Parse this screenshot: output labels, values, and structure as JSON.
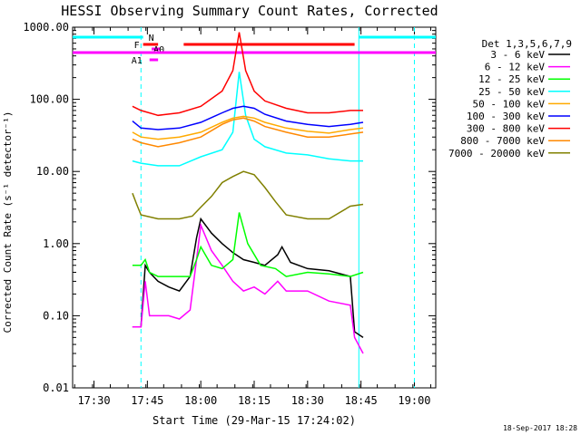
{
  "chart_data": {
    "type": "line",
    "title": "HESSI Observing Summary Count Rates, Corrected",
    "xlabel": "Start Time (29-Mar-15 17:24:02)",
    "ylabel": "Corrected Count Rate (s⁻¹ detector⁻¹)",
    "y_scale": "log",
    "ylim": [
      0.01,
      1000
    ],
    "y_ticks": [
      {
        "v": 1000,
        "label": "1000.00"
      },
      {
        "v": 100,
        "label": "100.00"
      },
      {
        "v": 10,
        "label": "10.00"
      },
      {
        "v": 1,
        "label": "1.00"
      },
      {
        "v": 0.1,
        "label": "0.10"
      },
      {
        "v": 0.01,
        "label": "0.01"
      }
    ],
    "xlim_minutes": [
      17.4,
      19.1
    ],
    "x_ticks": [
      {
        "v": 17.5,
        "label": "17:30"
      },
      {
        "v": 17.75,
        "label": "17:45"
      },
      {
        "v": 18.0,
        "label": "18:00"
      },
      {
        "v": 18.25,
        "label": "18:15"
      },
      {
        "v": 18.5,
        "label": "18:30"
      },
      {
        "v": 18.75,
        "label": "18:45"
      },
      {
        "v": 19.0,
        "label": "19:00"
      }
    ],
    "legend_title": "Det 1,3,5,6,7,9",
    "legend_placement": "right",
    "series": [
      {
        "name": "3 - 6 keV",
        "color": "#000000",
        "points": [
          [
            17.68,
            0.07
          ],
          [
            17.72,
            0.07
          ],
          [
            17.74,
            0.5
          ],
          [
            17.76,
            0.4
          ],
          [
            17.8,
            0.3
          ],
          [
            17.85,
            0.25
          ],
          [
            17.9,
            0.22
          ],
          [
            17.95,
            0.35
          ],
          [
            17.98,
            1.2
          ],
          [
            18.0,
            2.2
          ],
          [
            18.05,
            1.4
          ],
          [
            18.1,
            1.0
          ],
          [
            18.15,
            0.75
          ],
          [
            18.2,
            0.6
          ],
          [
            18.25,
            0.55
          ],
          [
            18.3,
            0.5
          ],
          [
            18.36,
            0.7
          ],
          [
            18.38,
            0.9
          ],
          [
            18.42,
            0.55
          ],
          [
            18.5,
            0.45
          ],
          [
            18.6,
            0.42
          ],
          [
            18.7,
            0.35
          ],
          [
            18.72,
            0.06
          ],
          [
            18.76,
            0.05
          ]
        ]
      },
      {
        "name": "6 - 12 keV",
        "color": "#ff00ff",
        "points": [
          [
            17.68,
            0.07
          ],
          [
            17.72,
            0.07
          ],
          [
            17.74,
            0.3
          ],
          [
            17.76,
            0.1
          ],
          [
            17.8,
            0.1
          ],
          [
            17.85,
            0.1
          ],
          [
            17.9,
            0.09
          ],
          [
            17.95,
            0.12
          ],
          [
            17.98,
            0.6
          ],
          [
            18.0,
            1.8
          ],
          [
            18.05,
            0.8
          ],
          [
            18.1,
            0.5
          ],
          [
            18.15,
            0.3
          ],
          [
            18.2,
            0.22
          ],
          [
            18.25,
            0.25
          ],
          [
            18.3,
            0.2
          ],
          [
            18.36,
            0.3
          ],
          [
            18.4,
            0.22
          ],
          [
            18.5,
            0.22
          ],
          [
            18.6,
            0.16
          ],
          [
            18.7,
            0.14
          ],
          [
            18.72,
            0.05
          ],
          [
            18.76,
            0.03
          ]
        ]
      },
      {
        "name": "12 - 25 keV",
        "color": "#00ff00",
        "points": [
          [
            17.68,
            0.5
          ],
          [
            17.72,
            0.5
          ],
          [
            17.74,
            0.6
          ],
          [
            17.76,
            0.4
          ],
          [
            17.8,
            0.35
          ],
          [
            17.9,
            0.35
          ],
          [
            17.95,
            0.35
          ],
          [
            17.98,
            0.6
          ],
          [
            18.0,
            0.9
          ],
          [
            18.05,
            0.5
          ],
          [
            18.1,
            0.45
          ],
          [
            18.15,
            0.6
          ],
          [
            18.18,
            2.7
          ],
          [
            18.22,
            1.0
          ],
          [
            18.28,
            0.5
          ],
          [
            18.35,
            0.45
          ],
          [
            18.4,
            0.35
          ],
          [
            18.5,
            0.4
          ],
          [
            18.6,
            0.38
          ],
          [
            18.7,
            0.35
          ],
          [
            18.76,
            0.4
          ]
        ]
      },
      {
        "name": "25 - 50 keV",
        "color": "#00ffff",
        "points": [
          [
            17.68,
            14
          ],
          [
            17.72,
            13
          ],
          [
            17.8,
            12
          ],
          [
            17.9,
            12
          ],
          [
            18.0,
            16
          ],
          [
            18.1,
            20
          ],
          [
            18.15,
            35
          ],
          [
            18.18,
            240
          ],
          [
            18.21,
            60
          ],
          [
            18.25,
            28
          ],
          [
            18.3,
            22
          ],
          [
            18.4,
            18
          ],
          [
            18.5,
            17
          ],
          [
            18.6,
            15
          ],
          [
            18.7,
            14
          ],
          [
            18.76,
            14
          ]
        ]
      },
      {
        "name": "50 - 100 keV",
        "color": "#ffaa00",
        "points": [
          [
            17.68,
            35
          ],
          [
            17.72,
            30
          ],
          [
            17.8,
            28
          ],
          [
            17.9,
            30
          ],
          [
            18.0,
            35
          ],
          [
            18.1,
            48
          ],
          [
            18.15,
            55
          ],
          [
            18.2,
            58
          ],
          [
            18.25,
            55
          ],
          [
            18.3,
            48
          ],
          [
            18.4,
            40
          ],
          [
            18.5,
            36
          ],
          [
            18.6,
            34
          ],
          [
            18.7,
            38
          ],
          [
            18.76,
            40
          ]
        ]
      },
      {
        "name": "100 - 300 keV",
        "color": "#0000ff",
        "points": [
          [
            17.68,
            50
          ],
          [
            17.72,
            40
          ],
          [
            17.8,
            38
          ],
          [
            17.9,
            40
          ],
          [
            18.0,
            48
          ],
          [
            18.1,
            65
          ],
          [
            18.15,
            75
          ],
          [
            18.2,
            80
          ],
          [
            18.25,
            75
          ],
          [
            18.3,
            62
          ],
          [
            18.4,
            50
          ],
          [
            18.5,
            45
          ],
          [
            18.6,
            42
          ],
          [
            18.7,
            45
          ],
          [
            18.76,
            48
          ]
        ]
      },
      {
        "name": "300 - 800 keV",
        "color": "#ff0000",
        "points": [
          [
            17.68,
            80
          ],
          [
            17.72,
            70
          ],
          [
            17.8,
            60
          ],
          [
            17.9,
            65
          ],
          [
            18.0,
            80
          ],
          [
            18.1,
            130
          ],
          [
            18.15,
            250
          ],
          [
            18.18,
            850
          ],
          [
            18.21,
            250
          ],
          [
            18.25,
            130
          ],
          [
            18.3,
            95
          ],
          [
            18.4,
            75
          ],
          [
            18.5,
            65
          ],
          [
            18.6,
            65
          ],
          [
            18.7,
            70
          ],
          [
            18.76,
            70
          ]
        ]
      },
      {
        "name": "800 - 7000 keV",
        "color": "#ff8800",
        "points": [
          [
            17.68,
            28
          ],
          [
            17.72,
            25
          ],
          [
            17.8,
            22
          ],
          [
            17.9,
            25
          ],
          [
            18.0,
            30
          ],
          [
            18.1,
            45
          ],
          [
            18.15,
            52
          ],
          [
            18.2,
            55
          ],
          [
            18.25,
            50
          ],
          [
            18.3,
            42
          ],
          [
            18.4,
            35
          ],
          [
            18.5,
            30
          ],
          [
            18.6,
            30
          ],
          [
            18.7,
            33
          ],
          [
            18.76,
            35
          ]
        ]
      },
      {
        "name": "7000 - 20000 keV",
        "color": "#808000",
        "points": [
          [
            17.68,
            5
          ],
          [
            17.7,
            3.5
          ],
          [
            17.72,
            2.5
          ],
          [
            17.8,
            2.2
          ],
          [
            17.9,
            2.2
          ],
          [
            17.96,
            2.4
          ],
          [
            18.0,
            3.2
          ],
          [
            18.05,
            4.5
          ],
          [
            18.1,
            7
          ],
          [
            18.15,
            8.5
          ],
          [
            18.2,
            10
          ],
          [
            18.25,
            9
          ],
          [
            18.3,
            6
          ],
          [
            18.35,
            3.8
          ],
          [
            18.4,
            2.5
          ],
          [
            18.5,
            2.2
          ],
          [
            18.6,
            2.2
          ],
          [
            18.7,
            3.3
          ],
          [
            18.76,
            3.5
          ]
        ]
      }
    ],
    "flag_bars": [
      {
        "label": "N",
        "color": "#00ffff",
        "segments": [
          [
            17.4,
            17.73
          ],
          [
            18.74,
            19.1
          ]
        ]
      },
      {
        "label": "F",
        "color": "#ff0000",
        "segments": [
          [
            17.73,
            17.8
          ],
          [
            17.92,
            18.72
          ]
        ]
      },
      {
        "label": "A0",
        "color": "#ff00ff",
        "segments": [
          [
            17.77,
            17.81
          ]
        ]
      },
      {
        "label": "",
        "color": "#ff00ff",
        "segments": [
          [
            17.4,
            19.1
          ]
        ]
      },
      {
        "label": "A1",
        "color": "#ff00ff",
        "segments": [
          [
            17.76,
            17.8
          ]
        ]
      }
    ],
    "vertical_markers": [
      {
        "x": 17.72,
        "style": "dashed",
        "color": "#00ffff"
      },
      {
        "x": 18.74,
        "style": "solid",
        "color": "#00ffff"
      },
      {
        "x": 19.0,
        "style": "dashed",
        "color": "#00ffff"
      }
    ],
    "footer_timestamp": "18-Sep-2017 18:28"
  }
}
